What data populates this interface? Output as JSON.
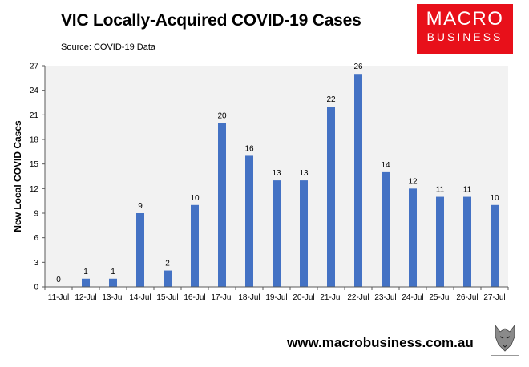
{
  "header": {
    "title": "VIC Locally-Acquired COVID-19 Cases",
    "source": "Source: COVID-19 Data"
  },
  "logo": {
    "line1": "MACRO",
    "line2": "BUSINESS",
    "color": "#e8101a"
  },
  "footer": {
    "website": "www.macrobusiness.com.au"
  },
  "chart_data": {
    "type": "bar",
    "categories": [
      "11-Jul",
      "12-Jul",
      "13-Jul",
      "14-Jul",
      "15-Jul",
      "16-Jul",
      "17-Jul",
      "18-Jul",
      "19-Jul",
      "20-Jul",
      "21-Jul",
      "22-Jul",
      "23-Jul",
      "24-Jul",
      "25-Jul",
      "26-Jul",
      "27-Jul"
    ],
    "values": [
      0,
      1,
      1,
      9,
      2,
      10,
      20,
      16,
      13,
      13,
      22,
      26,
      14,
      12,
      11,
      11,
      10
    ],
    "title": "VIC Locally-Acquired COVID-19 Cases",
    "xlabel": "",
    "ylabel": "New Local COVID Cases",
    "ylim": [
      0,
      27
    ],
    "yticks": [
      0,
      3,
      6,
      9,
      12,
      15,
      18,
      21,
      24,
      27
    ],
    "grid": false,
    "data_labels": true,
    "bar_color": "#4472c4",
    "plot_background": "#f2f2f2"
  }
}
